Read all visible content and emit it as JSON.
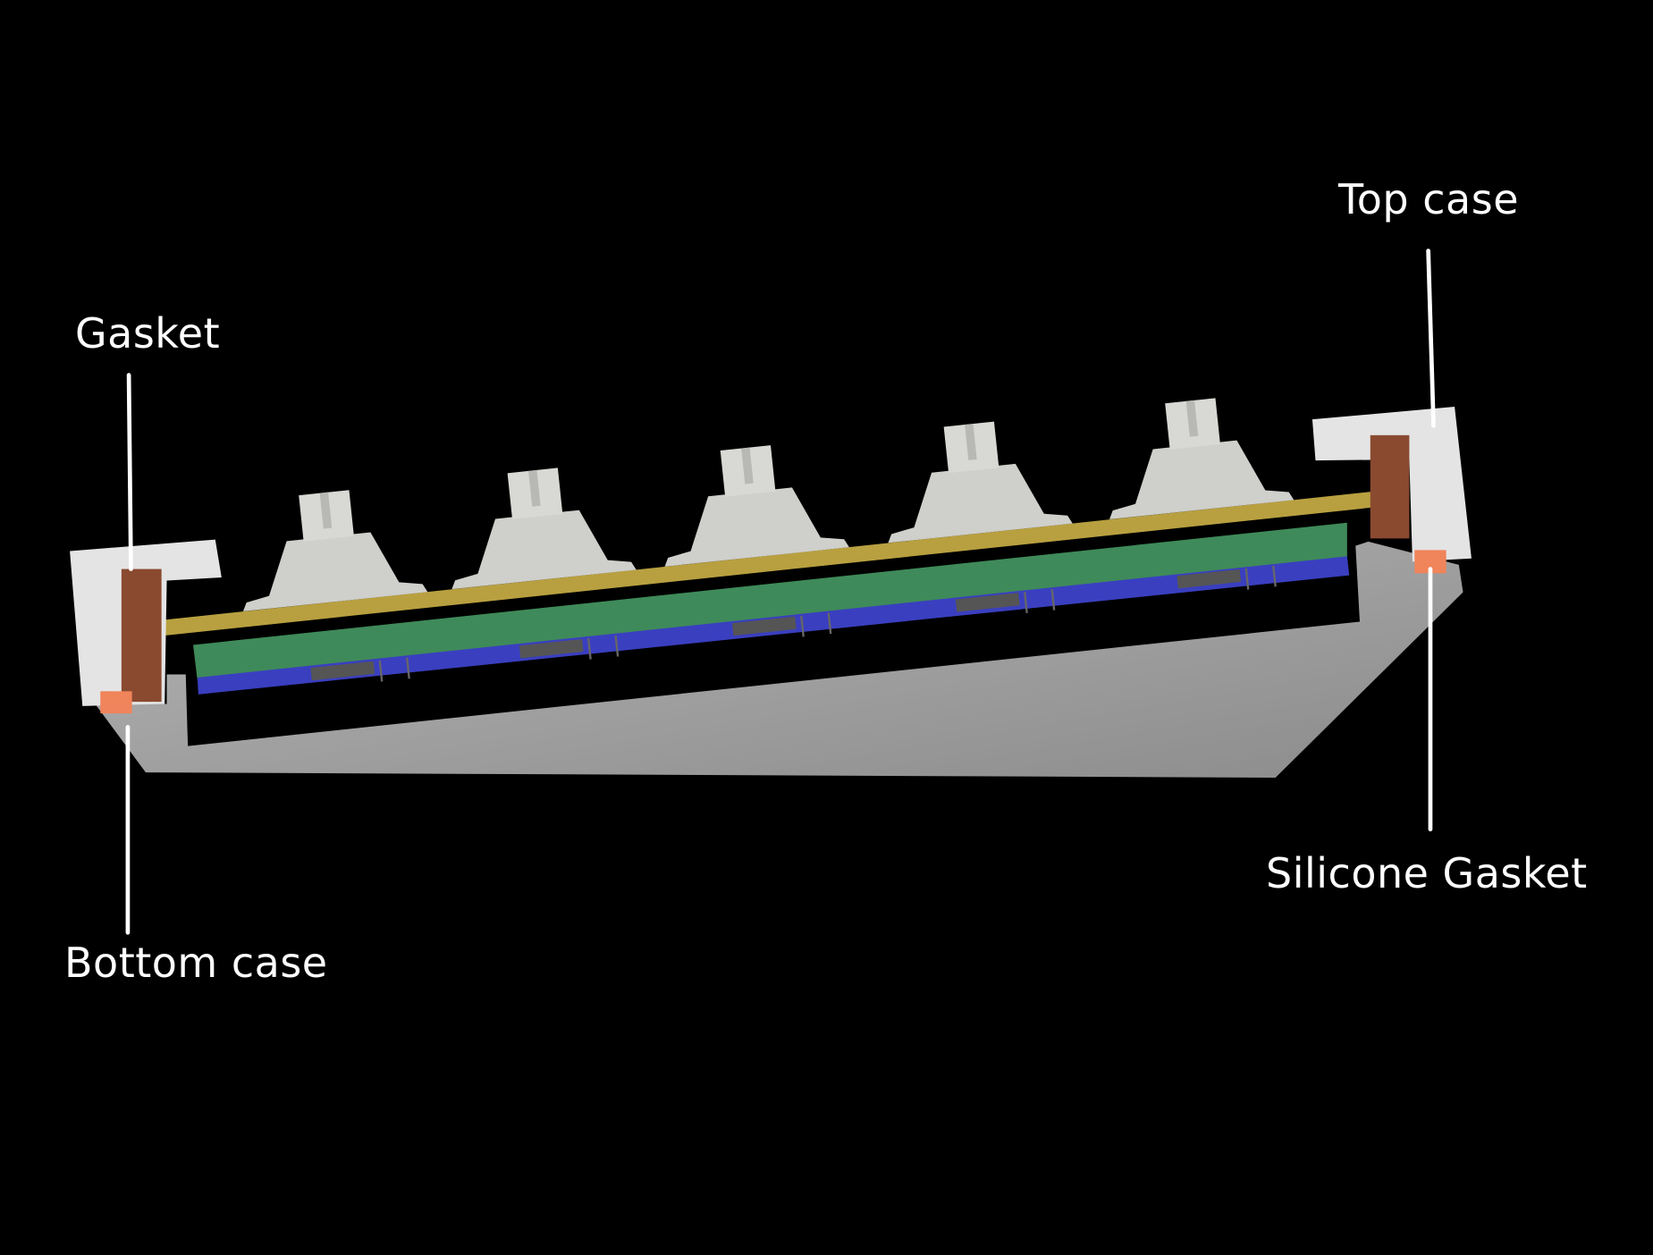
{
  "labels": {
    "top_case": "Top case",
    "gasket": "Gasket",
    "bottom_case": "Bottom case",
    "silicone_gasket": "Silicone Gasket"
  },
  "colors": {
    "background": "#000000",
    "case": "#e6e6e6",
    "bottom_case": "#9a9a9a",
    "gasket": "#8a4a30",
    "silicone_gasket": "#f0845a",
    "plate": "#b8a040",
    "pcb_foam": "#3f8a5a",
    "pcb": "#3a3fc0",
    "switch": "#cfcfcb",
    "leader_line": "#ffffff"
  },
  "switch_count": 5
}
